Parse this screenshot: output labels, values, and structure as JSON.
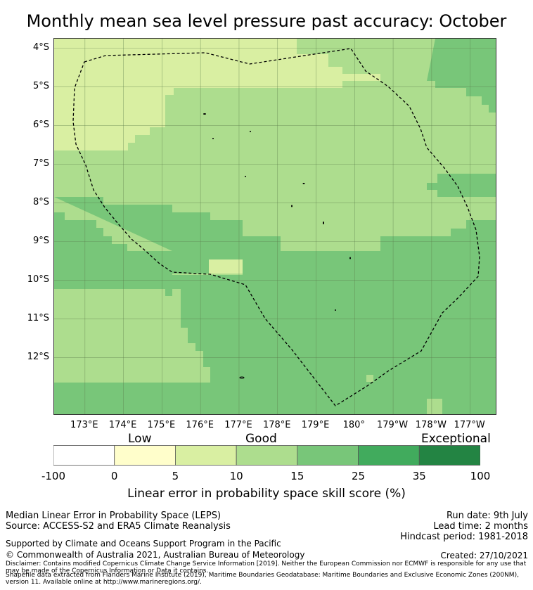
{
  "title": "Monthly mean sea level pressure past accuracy: October",
  "lat_labels": [
    {
      "text": "4°S",
      "lat": -4
    },
    {
      "text": "5°S",
      "lat": -5
    },
    {
      "text": "6°S",
      "lat": -6
    },
    {
      "text": "7°S",
      "lat": -7
    },
    {
      "text": "8°S",
      "lat": -8
    },
    {
      "text": "9°S",
      "lat": -9
    },
    {
      "text": "10°S",
      "lat": -10
    },
    {
      "text": "11°S",
      "lat": -11
    },
    {
      "text": "12°S",
      "lat": -12
    }
  ],
  "lon_labels": [
    {
      "text": "173°E",
      "lon": 173
    },
    {
      "text": "174°E",
      "lon": 174
    },
    {
      "text": "175°E",
      "lon": 175
    },
    {
      "text": "176°E",
      "lon": 176
    },
    {
      "text": "177°E",
      "lon": 177
    },
    {
      "text": "178°E",
      "lon": 178
    },
    {
      "text": "179°E",
      "lon": 179
    },
    {
      "text": "180°",
      "lon": 180
    },
    {
      "text": "179°W",
      "lon": 181
    },
    {
      "text": "178°W",
      "lon": 182
    },
    {
      "text": "177°W",
      "lon": 183
    }
  ],
  "map_extent": {
    "lon_min": 172.2,
    "lon_max": 183.7,
    "lat_min": -13.5,
    "lat_max": -3.75
  },
  "legend": {
    "categories": [
      "Low",
      "Good",
      "Exceptional"
    ],
    "ticks": [
      "-100",
      "0",
      "5",
      "10",
      "15",
      "25",
      "35",
      "100"
    ],
    "colors": [
      "#ffffff",
      "#fffecb",
      "#d9efa2",
      "#addd8e",
      "#78c679",
      "#41ab5d",
      "#238443"
    ],
    "label": "Linear error in probability space skill score (%)"
  },
  "colors": {
    "band_5_10": "#d9efa2",
    "band_10_15": "#addd8e",
    "band_15_25": "#78c679",
    "border": "#000000",
    "grid": "#5a7a4a"
  },
  "footer": {
    "method": "Median Linear Error in Probability Space (LEPS)",
    "source": "Source: ACCESS-S2 and ERA5 Climate Reanalysis",
    "run_date": "Run date: 9th July",
    "lead_time": "Lead time: 2 months",
    "hindcast": "Hindcast period: 1981-2018",
    "supported": "Supported by Climate and Oceans Support Program in the Pacific",
    "copyright": "© Commonwealth of Australia 2021, Australian Bureau of Meteorology",
    "created": "Created: 27/10/2021",
    "disclaimer": "Disclaimer: Contains modified Copernicus Climate Change Service Information [2019]. Neither the European Commission nor ECMWF is responsible for any use that may be made of the Copernicus Information or Data it contains.",
    "shapefile": "Shapefile data extracted from Flanders Marine Institute (2019), Maritime Boundaries Geodatabase: Maritime Boundaries and Exclusive Economic Zones (200NM), version 11. Available online at http://www.marineregions.org/."
  }
}
